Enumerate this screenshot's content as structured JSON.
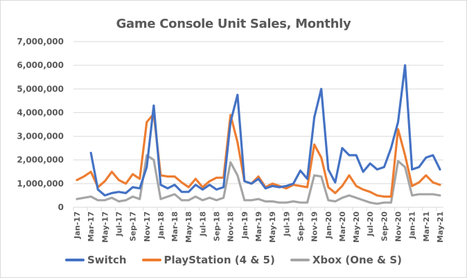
{
  "chart_data": {
    "type": "line",
    "title": "Game Console Unit Sales, Monthly",
    "xlabel": "",
    "ylabel": "",
    "ylim": [
      0,
      7000000
    ],
    "yticks": [
      0,
      1000000,
      2000000,
      3000000,
      4000000,
      5000000,
      6000000,
      7000000
    ],
    "ytick_labels": [
      "0",
      "1,000,000",
      "2,000,000",
      "3,000,000",
      "4,000,000",
      "5,000,000",
      "6,000,000",
      "7,000,000"
    ],
    "grid": true,
    "legend_position": "bottom",
    "x": [
      "Jan-17",
      "Feb-17",
      "Mar-17",
      "Apr-17",
      "May-17",
      "Jun-17",
      "Jul-17",
      "Aug-17",
      "Sep-17",
      "Oct-17",
      "Nov-17",
      "Dec-17",
      "Jan-18",
      "Feb-18",
      "Mar-18",
      "Apr-18",
      "May-18",
      "Jun-18",
      "Jul-18",
      "Aug-18",
      "Sep-18",
      "Oct-18",
      "Nov-18",
      "Dec-18",
      "Jan-19",
      "Feb-19",
      "Mar-19",
      "Apr-19",
      "May-19",
      "Jun-19",
      "Jul-19",
      "Aug-19",
      "Sep-19",
      "Oct-19",
      "Nov-19",
      "Dec-19",
      "Jan-20",
      "Feb-20",
      "Mar-20",
      "Apr-20",
      "May-20",
      "Jun-20",
      "Jul-20",
      "Aug-20",
      "Sep-20",
      "Oct-20",
      "Nov-20",
      "Dec-20",
      "Jan-21",
      "Feb-21",
      "Mar-21",
      "Apr-21",
      "May-21"
    ],
    "xtick_labels": [
      "Jan-17",
      "Mar-17",
      "May-17",
      "Jul-17",
      "Sep-17",
      "Nov-17",
      "Jan-18",
      "Mar-18",
      "May-18",
      "Jul-18",
      "Sep-18",
      "Nov-18",
      "Jan-19",
      "Mar-19",
      "May-19",
      "Jul-19",
      "Sep-19",
      "Nov-19",
      "Jan-20",
      "Mar-20",
      "May-20",
      "Jul-20",
      "Sep-20",
      "Nov-20",
      "Jan-21",
      "Mar-21",
      "May-21"
    ],
    "series": [
      {
        "name": "Switch",
        "color": "#4472c4",
        "values": [
          null,
          null,
          2300000,
          750000,
          500000,
          600000,
          650000,
          600000,
          850000,
          800000,
          1700000,
          4300000,
          950000,
          800000,
          950000,
          650000,
          650000,
          950000,
          750000,
          950000,
          750000,
          850000,
          3600000,
          4750000,
          1100000,
          1000000,
          1200000,
          800000,
          900000,
          850000,
          900000,
          1000000,
          1550000,
          1200000,
          3800000,
          5000000,
          1600000,
          1050000,
          2500000,
          2200000,
          2200000,
          1500000,
          1850000,
          1600000,
          1700000,
          2500000,
          3600000,
          6000000,
          1600000,
          1700000,
          2100000,
          2200000,
          1600000
        ]
      },
      {
        "name": "PlayStation (4 & 5)",
        "color": "#ed7d31",
        "values": [
          1150000,
          1300000,
          1500000,
          850000,
          1100000,
          1500000,
          1150000,
          1000000,
          1400000,
          1200000,
          3600000,
          3950000,
          1350000,
          1300000,
          1300000,
          1050000,
          850000,
          1200000,
          850000,
          1100000,
          1250000,
          1250000,
          3900000,
          2750000,
          1100000,
          1000000,
          1300000,
          850000,
          1000000,
          900000,
          800000,
          950000,
          900000,
          850000,
          2650000,
          2100000,
          850000,
          600000,
          900000,
          1350000,
          900000,
          750000,
          650000,
          500000,
          450000,
          450000,
          3300000,
          2200000,
          900000,
          1050000,
          1350000,
          1050000,
          950000
        ]
      },
      {
        "name": "Xbox (One & S)",
        "color": "#a5a5a5",
        "values": [
          350000,
          400000,
          450000,
          300000,
          300000,
          400000,
          250000,
          300000,
          450000,
          350000,
          2200000,
          2000000,
          350000,
          450000,
          550000,
          300000,
          300000,
          450000,
          300000,
          400000,
          300000,
          400000,
          1900000,
          1350000,
          300000,
          300000,
          350000,
          250000,
          250000,
          200000,
          200000,
          250000,
          200000,
          200000,
          1350000,
          1300000,
          300000,
          250000,
          400000,
          500000,
          400000,
          300000,
          200000,
          150000,
          200000,
          200000,
          1950000,
          1700000,
          500000,
          550000,
          550000,
          550000,
          500000
        ]
      }
    ]
  }
}
